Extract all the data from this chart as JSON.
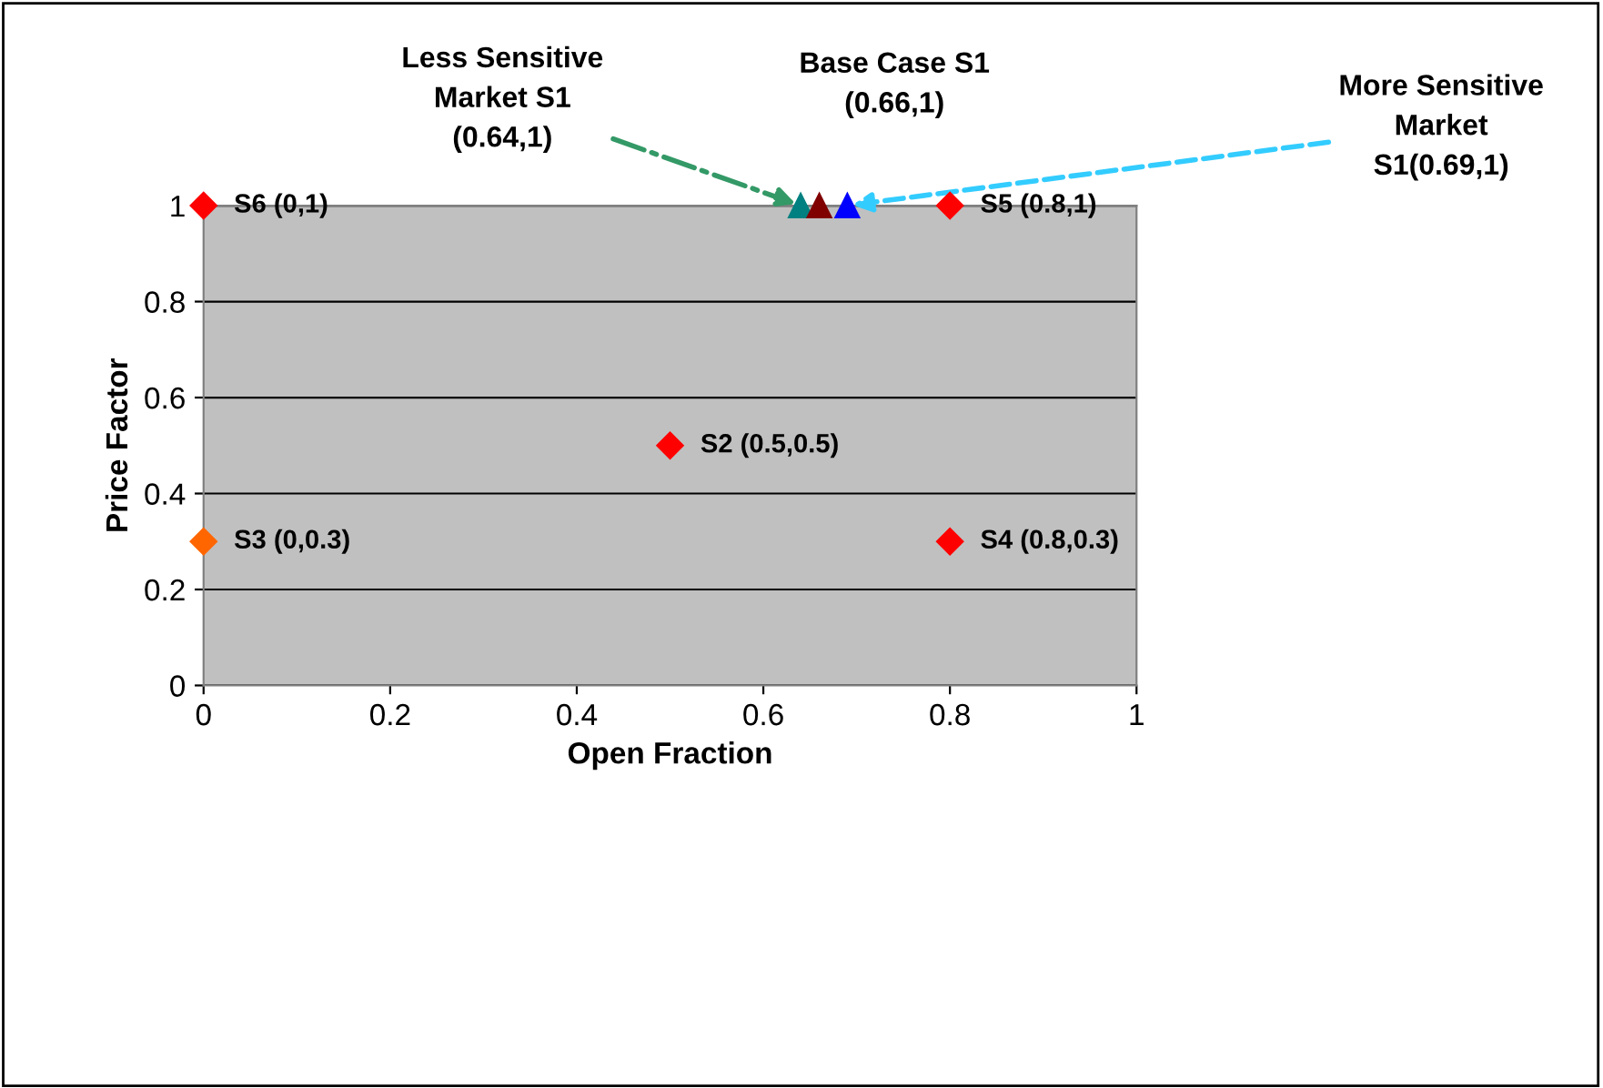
{
  "chart_data": {
    "type": "scatter",
    "xlabel": "Open Fraction",
    "ylabel": "Price Factor",
    "xlim": [
      0,
      1
    ],
    "ylim": [
      0,
      1
    ],
    "xticks": [
      0,
      0.2,
      0.4,
      0.6,
      0.8,
      1
    ],
    "yticks": [
      0,
      0.2,
      0.4,
      0.6,
      0.8,
      1
    ],
    "grid": "y",
    "legend": false,
    "series": [
      {
        "name": "S6 (0,1)",
        "color": "#ff0000",
        "marker": "diamond",
        "x": [
          0
        ],
        "values": [
          1
        ]
      },
      {
        "name": "S5 (0.8,1)",
        "color": "#ff0000",
        "marker": "diamond",
        "x": [
          0.8
        ],
        "values": [
          1
        ]
      },
      {
        "name": "S2 (0.5,0.5)",
        "color": "#ff0000",
        "marker": "diamond",
        "x": [
          0.5
        ],
        "values": [
          0.5
        ]
      },
      {
        "name": "S3 (0,0.3)",
        "color": "#ff6600",
        "marker": "diamond",
        "x": [
          0
        ],
        "values": [
          0.3
        ]
      },
      {
        "name": "S4 (0.8,0.3)",
        "color": "#ff0000",
        "marker": "diamond",
        "x": [
          0.8
        ],
        "values": [
          0.3
        ]
      },
      {
        "color": "#008080",
        "marker": "triangle",
        "x": [
          0.64
        ],
        "values": [
          1
        ]
      },
      {
        "color": "#800000",
        "marker": "triangle",
        "x": [
          0.66
        ],
        "values": [
          1
        ]
      },
      {
        "color": "#0000ff",
        "marker": "triangle",
        "x": [
          0.69
        ],
        "values": [
          1
        ]
      }
    ],
    "annotations": [
      {
        "text": "Less Sensitive\nMarket S1\n(0.64,1)",
        "x": 0.64,
        "y": 1
      },
      "Base Case S1\n(0.66,1)",
      {
        "text": "More Sensitive\nMarket\nS1(0.69,1)",
        "x": 0.69,
        "y": 1
      }
    ]
  }
}
